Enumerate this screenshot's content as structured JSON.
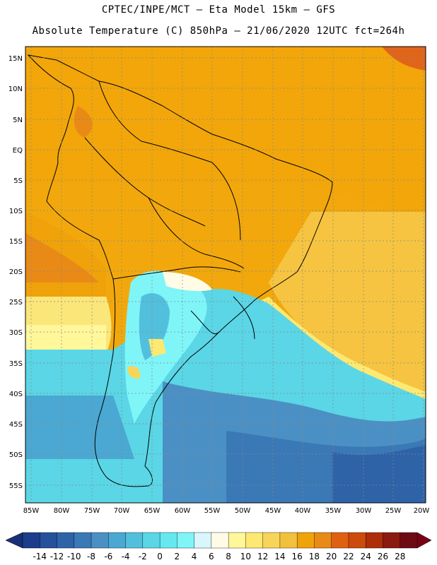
{
  "header": {
    "line1": "CPTEC/INPE/MCT –  Eta Model 15km – GFS",
    "line2": "Absolute Temperature (C) 850hPa – 21/06/2020 12UTC fct=264h"
  },
  "map": {
    "lat_labels": [
      "15N",
      "10N",
      "5N",
      "EQ",
      "5S",
      "10S",
      "15S",
      "20S",
      "25S",
      "30S",
      "35S",
      "40S",
      "45S",
      "50S",
      "55S"
    ],
    "lon_labels": [
      "85W",
      "80W",
      "75W",
      "70W",
      "65W",
      "60W",
      "55W",
      "50W",
      "45W",
      "40W",
      "35W",
      "30W",
      "25W",
      "20W"
    ],
    "grid": "dotted",
    "region": "South America"
  },
  "colorbar": {
    "labels": [
      "-14",
      "-12",
      "-10",
      "-8",
      "-6",
      "-4",
      "-2",
      "0",
      "2",
      "4",
      "6",
      "8",
      "10",
      "12",
      "14",
      "16",
      "18",
      "20",
      "22",
      "24",
      "26",
      "28"
    ],
    "colors": [
      "#1b3d8c",
      "#25509c",
      "#2e63a8",
      "#3a78b6",
      "#4b90c4",
      "#4aa8d2",
      "#52c0dc",
      "#5ad6e6",
      "#66e8f0",
      "#7ff5f8",
      "#d8f6fc",
      "#fffbe6",
      "#fff79a",
      "#fde872",
      "#f8d558",
      "#f2c13c",
      "#f0a20a",
      "#e98a16",
      "#df6010",
      "#cc4a0c",
      "#ad2e08",
      "#8c1a10",
      "#6e0a14"
    ],
    "arrow_left": "#1a2f7a",
    "arrow_right": "#7a0016"
  }
}
